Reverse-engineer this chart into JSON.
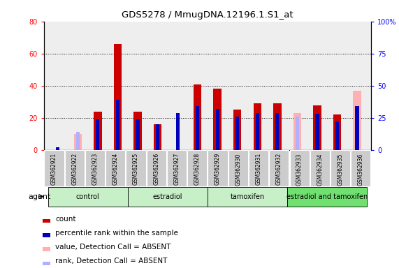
{
  "title": "GDS5278 / MmugDNA.12196.1.S1_at",
  "samples": [
    "GSM362921",
    "GSM362922",
    "GSM362923",
    "GSM362924",
    "GSM362925",
    "GSM362926",
    "GSM362927",
    "GSM362928",
    "GSM362929",
    "GSM362930",
    "GSM362931",
    "GSM362932",
    "GSM362933",
    "GSM362934",
    "GSM362935",
    "GSM362936"
  ],
  "count_values": [
    0,
    0,
    24,
    66,
    24,
    16,
    0,
    41,
    38,
    25,
    29,
    29,
    0,
    28,
    22,
    0
  ],
  "rank_values": [
    2,
    0,
    24,
    39,
    24,
    20,
    29,
    34,
    32,
    26,
    29,
    29,
    0,
    28,
    22,
    34
  ],
  "absent_count": [
    0,
    10,
    0,
    0,
    0,
    0,
    0,
    0,
    0,
    0,
    0,
    0,
    23,
    0,
    0,
    37
  ],
  "absent_rank": [
    0,
    14,
    0,
    0,
    0,
    0,
    0,
    0,
    0,
    0,
    0,
    0,
    26,
    0,
    0,
    0
  ],
  "groups": [
    {
      "label": "control",
      "start": 0,
      "end": 4,
      "color": "#c8f0c8"
    },
    {
      "label": "estradiol",
      "start": 4,
      "end": 8,
      "color": "#c8f0c8"
    },
    {
      "label": "tamoxifen",
      "start": 8,
      "end": 12,
      "color": "#c8f0c8"
    },
    {
      "label": "estradiol and tamoxifen",
      "start": 12,
      "end": 16,
      "color": "#70e070"
    }
  ],
  "ylim_left": [
    0,
    80
  ],
  "ylim_right": [
    0,
    100
  ],
  "yticks_left": [
    0,
    20,
    40,
    60,
    80
  ],
  "yticks_right": [
    0,
    25,
    50,
    75,
    100
  ],
  "ytick_labels_left": [
    "0",
    "20",
    "40",
    "60",
    "80"
  ],
  "ytick_labels_right": [
    "0",
    "25",
    "50",
    "75",
    "100%"
  ],
  "count_color": "#cc0000",
  "rank_color": "#0000bb",
  "absent_count_color": "#ffb0b0",
  "absent_rank_color": "#b0b0ff",
  "bg_plot": "#eeeeee",
  "bg_xticklabel": "#cccccc",
  "legend_entries": [
    {
      "color": "#cc0000",
      "label": "count"
    },
    {
      "color": "#0000bb",
      "label": "percentile rank within the sample"
    },
    {
      "color": "#ffb0b0",
      "label": "value, Detection Call = ABSENT"
    },
    {
      "color": "#b0b0ff",
      "label": "rank, Detection Call = ABSENT"
    }
  ]
}
